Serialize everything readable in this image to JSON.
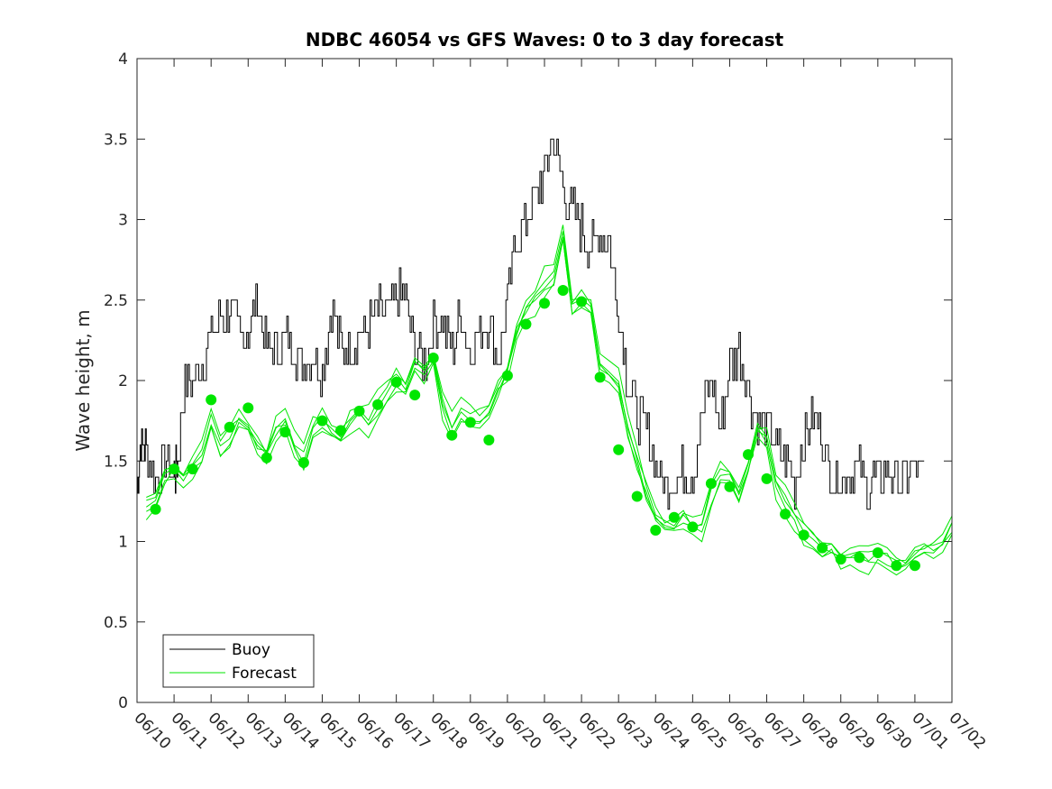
{
  "chart_data": {
    "type": "line",
    "title": "NDBC 46054 vs GFS Waves: 0 to 3 day forecast",
    "xlabel": "",
    "ylabel": "Wave height, m",
    "ylim": [
      0,
      4
    ],
    "yticks": [
      "0",
      "0.5",
      "1",
      "1.5",
      "2",
      "2.5",
      "3",
      "3.5",
      "4"
    ],
    "xticks": [
      "06/10",
      "06/11",
      "06/12",
      "06/13",
      "06/14",
      "06/15",
      "06/16",
      "06/17",
      "06/18",
      "06/19",
      "06/20",
      "06/21",
      "06/22",
      "06/23",
      "06/24",
      "06/25",
      "06/26",
      "06/27",
      "06/28",
      "06/29",
      "06/30",
      "07/01",
      "07/02"
    ],
    "xlim_days": [
      0,
      22
    ],
    "grid": false,
    "legend": {
      "placement": "bottom-left",
      "entries": [
        "Buoy",
        "Forecast"
      ]
    },
    "colors": {
      "buoy": "#000000",
      "forecast": "#00e600",
      "axes": "#262626"
    },
    "series": [
      {
        "name": "Buoy",
        "x_days": [
          0,
          0.1,
          0.25,
          0.5,
          0.75,
          1.0,
          1.1,
          1.25,
          1.5,
          1.75,
          2.0,
          2.25,
          2.5,
          2.75,
          3.0,
          3.25,
          3.5,
          3.75,
          4.0,
          4.25,
          4.5,
          4.75,
          5.0,
          5.25,
          5.5,
          5.75,
          6.0,
          6.25,
          6.5,
          6.75,
          7.0,
          7.25,
          7.5,
          7.75,
          8.0,
          8.25,
          8.5,
          8.75,
          9.0,
          9.25,
          9.5,
          9.75,
          10.0,
          10.25,
          10.5,
          10.75,
          11.0,
          11.25,
          11.5,
          11.75,
          12.0,
          12.25,
          12.5,
          12.75,
          13.0,
          13.25,
          13.5,
          13.75,
          14.0,
          14.25,
          14.5,
          14.75,
          15.0,
          15.25,
          15.5,
          15.75,
          16.0,
          16.25,
          16.5,
          16.75,
          17.0,
          17.25,
          17.5,
          17.75,
          18.0,
          18.25,
          18.5,
          18.75,
          19.0,
          19.25,
          19.5,
          19.75,
          20.0,
          20.25,
          20.5,
          20.75,
          21.0,
          21.25
        ],
        "values": [
          1.35,
          1.6,
          1.6,
          1.4,
          1.5,
          1.4,
          1.5,
          1.95,
          2.0,
          2.1,
          2.3,
          2.4,
          2.45,
          2.3,
          2.3,
          2.5,
          2.2,
          2.2,
          2.25,
          2.2,
          2.1,
          2.2,
          2.05,
          2.45,
          2.2,
          2.2,
          2.3,
          2.35,
          2.45,
          2.4,
          2.55,
          2.5,
          2.2,
          2.1,
          2.35,
          2.35,
          2.2,
          2.4,
          2.2,
          2.3,
          2.4,
          2.15,
          2.5,
          2.9,
          3.0,
          3.15,
          3.3,
          3.5,
          3.2,
          3.05,
          2.95,
          2.8,
          2.95,
          2.85,
          2.4,
          2.0,
          1.8,
          1.7,
          1.45,
          1.35,
          1.4,
          1.45,
          1.4,
          1.8,
          2.0,
          1.7,
          2.1,
          2.2,
          1.95,
          1.7,
          1.7,
          1.6,
          1.5,
          1.35,
          1.65,
          1.8,
          1.65,
          1.4,
          1.4,
          1.45,
          1.45,
          1.35,
          1.4,
          1.45,
          1.4,
          1.4,
          1.45,
          1.4
        ]
      },
      {
        "name": "Forecast",
        "x_days": [
          0.25,
          0.5,
          0.75,
          1.0,
          1.25,
          1.5,
          1.75,
          2.0,
          2.25,
          2.5,
          2.75,
          3.0,
          3.25,
          3.5,
          3.75,
          4.0,
          4.25,
          4.5,
          4.75,
          5.0,
          5.25,
          5.5,
          5.75,
          6.0,
          6.25,
          6.5,
          6.75,
          7.0,
          7.25,
          7.5,
          7.75,
          8.0,
          8.25,
          8.5,
          8.75,
          9.0,
          9.25,
          9.5,
          9.75,
          10.0,
          10.25,
          10.5,
          10.75,
          11.0,
          11.25,
          11.5,
          11.75,
          12.0,
          12.25,
          12.5,
          12.75,
          13.0,
          13.25,
          13.5,
          13.75,
          14.0,
          14.25,
          14.5,
          14.75,
          15.0,
          15.25,
          15.5,
          15.75,
          16.0,
          16.25,
          16.5,
          16.75,
          17.0,
          17.25,
          17.5,
          17.75,
          18.0,
          18.25,
          18.5,
          18.75,
          19.0,
          19.25,
          19.5,
          19.75,
          20.0,
          20.25,
          20.5,
          20.75,
          21.0,
          21.25,
          21.5,
          21.75,
          22.0
        ],
        "values": [
          1.2,
          1.25,
          1.4,
          1.45,
          1.4,
          1.45,
          1.55,
          1.75,
          1.6,
          1.65,
          1.75,
          1.7,
          1.6,
          1.55,
          1.7,
          1.75,
          1.6,
          1.5,
          1.7,
          1.75,
          1.7,
          1.65,
          1.75,
          1.8,
          1.75,
          1.85,
          1.9,
          2.0,
          1.95,
          2.1,
          2.05,
          2.15,
          1.85,
          1.7,
          1.8,
          1.75,
          1.75,
          1.8,
          1.95,
          2.05,
          2.3,
          2.45,
          2.5,
          2.6,
          2.65,
          2.9,
          2.45,
          2.5,
          2.45,
          2.1,
          2.05,
          2.0,
          1.7,
          1.5,
          1.3,
          1.15,
          1.1,
          1.1,
          1.15,
          1.1,
          1.1,
          1.3,
          1.4,
          1.4,
          1.3,
          1.45,
          1.7,
          1.65,
          1.35,
          1.25,
          1.15,
          1.05,
          1.0,
          0.95,
          0.95,
          0.9,
          0.9,
          0.92,
          0.9,
          0.92,
          0.9,
          0.85,
          0.85,
          0.95,
          0.95,
          0.95,
          1.0,
          1.1
        ]
      }
    ],
    "forecast_markers": {
      "x_days": [
        0.5,
        1.0,
        1.5,
        2.0,
        2.5,
        3.0,
        3.5,
        4.0,
        4.5,
        5.0,
        5.5,
        6.0,
        6.5,
        7.0,
        7.5,
        8.0,
        8.5,
        9.0,
        9.5,
        10.0,
        10.5,
        11.0,
        11.5,
        12.0,
        12.5,
        13.0,
        13.5,
        14.0,
        14.5,
        15.0,
        15.5,
        16.0,
        16.5,
        17.0,
        17.5,
        18.0,
        18.5,
        19.0,
        19.5,
        20.0,
        20.5,
        21.0
      ],
      "values": [
        1.2,
        1.45,
        1.45,
        1.88,
        1.71,
        1.83,
        1.52,
        1.68,
        1.49,
        1.75,
        1.69,
        1.81,
        1.85,
        1.99,
        1.91,
        2.14,
        1.66,
        1.74,
        1.63,
        2.03,
        2.35,
        2.48,
        2.56,
        2.49,
        2.02,
        1.57,
        1.28,
        1.07,
        1.15,
        1.09,
        1.36,
        1.34,
        1.54,
        1.39,
        1.17,
        1.04,
        0.96,
        0.89,
        0.9,
        0.93,
        0.85,
        0.85
      ]
    }
  }
}
